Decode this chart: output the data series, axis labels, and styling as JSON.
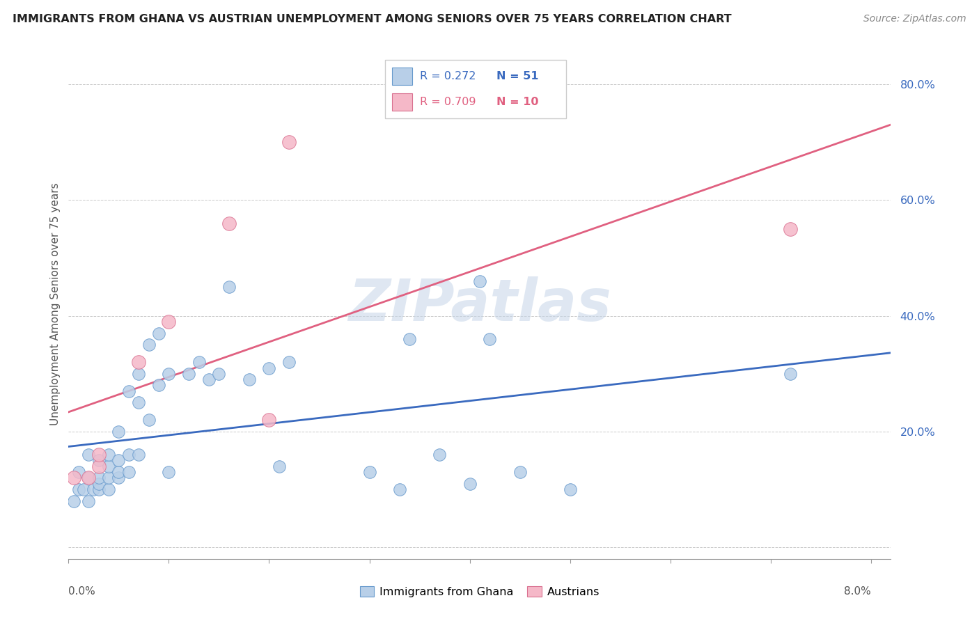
{
  "title": "IMMIGRANTS FROM GHANA VS AUSTRIAN UNEMPLOYMENT AMONG SENIORS OVER 75 YEARS CORRELATION CHART",
  "source": "Source: ZipAtlas.com",
  "ylabel": "Unemployment Among Seniors over 75 years",
  "xlim": [
    0.0,
    0.082
  ],
  "ylim": [
    -0.02,
    0.86
  ],
  "watermark": "ZIPatlas",
  "blue_fill": "#b8cfe8",
  "blue_edge": "#6699cc",
  "pink_fill": "#f5b8c8",
  "pink_edge": "#d97090",
  "blue_line": "#3a6abf",
  "pink_line": "#e06080",
  "blue_text": "#3a6abf",
  "pink_text": "#e06080",
  "ytick_positions": [
    0.0,
    0.2,
    0.4,
    0.6,
    0.8
  ],
  "ytick_labels": [
    "",
    "20.0%",
    "40.0%",
    "60.0%",
    "80.0%"
  ],
  "xtick_positions": [
    0.0,
    0.01,
    0.02,
    0.03,
    0.04,
    0.05,
    0.06,
    0.07,
    0.08
  ],
  "legend_r1": "0.272",
  "legend_n1": "51",
  "legend_r2": "0.709",
  "legend_n2": "10",
  "ghana_x": [
    0.0005,
    0.001,
    0.001,
    0.0015,
    0.002,
    0.002,
    0.002,
    0.0025,
    0.003,
    0.003,
    0.003,
    0.003,
    0.004,
    0.004,
    0.004,
    0.004,
    0.005,
    0.005,
    0.005,
    0.005,
    0.006,
    0.006,
    0.006,
    0.007,
    0.007,
    0.007,
    0.008,
    0.008,
    0.009,
    0.009,
    0.01,
    0.01,
    0.012,
    0.013,
    0.014,
    0.015,
    0.016,
    0.018,
    0.02,
    0.021,
    0.022,
    0.03,
    0.033,
    0.034,
    0.037,
    0.04,
    0.041,
    0.042,
    0.045,
    0.05,
    0.072
  ],
  "ghana_y": [
    0.08,
    0.1,
    0.13,
    0.1,
    0.08,
    0.12,
    0.16,
    0.1,
    0.1,
    0.11,
    0.12,
    0.15,
    0.1,
    0.12,
    0.14,
    0.16,
    0.12,
    0.13,
    0.15,
    0.2,
    0.13,
    0.16,
    0.27,
    0.16,
    0.25,
    0.3,
    0.22,
    0.35,
    0.28,
    0.37,
    0.13,
    0.3,
    0.3,
    0.32,
    0.29,
    0.3,
    0.45,
    0.29,
    0.31,
    0.14,
    0.32,
    0.13,
    0.1,
    0.36,
    0.16,
    0.11,
    0.46,
    0.36,
    0.13,
    0.1,
    0.3
  ],
  "austrian_x": [
    0.0005,
    0.002,
    0.003,
    0.003,
    0.007,
    0.01,
    0.016,
    0.02,
    0.022,
    0.072
  ],
  "austrian_y": [
    0.12,
    0.12,
    0.14,
    0.16,
    0.32,
    0.39,
    0.56,
    0.22,
    0.7,
    0.55
  ]
}
